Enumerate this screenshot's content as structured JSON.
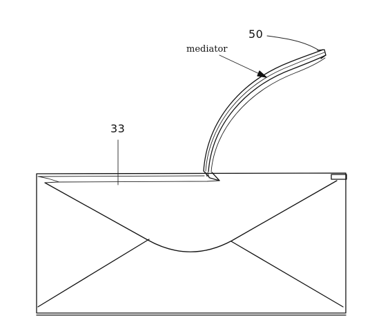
{
  "figure": {
    "labels": {
      "mediator": "mediator",
      "ref_50": "50",
      "ref_33": "33"
    }
  }
}
